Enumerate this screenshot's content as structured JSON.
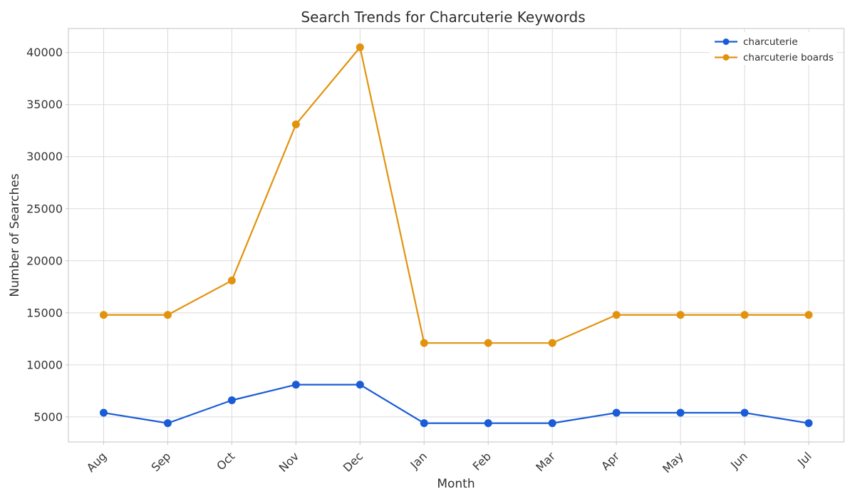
{
  "chart_data": {
    "type": "line",
    "title": "Search Trends for Charcuterie Keywords",
    "xlabel": "Month",
    "ylabel": "Number of Searches",
    "categories": [
      "Aug",
      "Sep",
      "Oct",
      "Nov",
      "Dec",
      "Jan",
      "Feb",
      "Mar",
      "Apr",
      "May",
      "Jun",
      "Jul"
    ],
    "series": [
      {
        "name": "charcuterie",
        "color": "#1a5cd6",
        "values": [
          5400,
          4400,
          6600,
          8100,
          8100,
          4400,
          4400,
          4400,
          5400,
          5400,
          5400,
          4400
        ]
      },
      {
        "name": "charcuterie boards",
        "color": "#e2930d",
        "values": [
          14800,
          14800,
          18100,
          33100,
          40500,
          12100,
          12100,
          12100,
          14800,
          14800,
          14800,
          14800
        ]
      }
    ],
    "ylim": [
      2595,
      42305
    ],
    "yticks": [
      5000,
      10000,
      15000,
      20000,
      25000,
      30000,
      35000,
      40000
    ],
    "grid": true,
    "legend_position": "upper-right",
    "x_tick_rotation": 45
  },
  "style": {
    "background": "#ffffff",
    "grid_color": "#dadada",
    "spine_color": "#cdcdcd",
    "marker_radius": 5.5,
    "line_width": 2.2
  }
}
